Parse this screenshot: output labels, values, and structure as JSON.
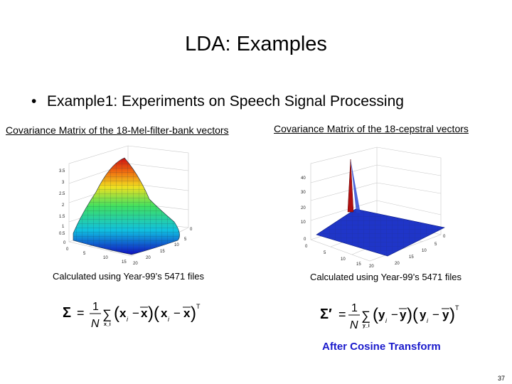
{
  "slide": {
    "title": "LDA: Examples",
    "bullet": "Example1: Experiments on Speech Signal Processing",
    "bullet_marker": "•",
    "page_number": "37"
  },
  "left_panel": {
    "caption": "Covariance Matrix of the 18-Mel-filter-bank vectors",
    "note": "Calculated using Year-99’s 5471 files",
    "formula": {
      "lhs": "Σ",
      "equals": "=",
      "fraction_num": "1",
      "fraction_den": "N",
      "sum": "∑",
      "sum_sub": "x_i",
      "vec": "x",
      "sub": "i",
      "minus": "−",
      "mean": "x",
      "transpose": "T"
    },
    "z_ticks": [
      "3.5",
      "3",
      "2.5",
      "2",
      "1.5",
      "1",
      "0.5",
      "0"
    ],
    "x_ticks": [
      "0",
      "5",
      "10",
      "15",
      "20"
    ],
    "y_ticks": [
      "0",
      "5",
      "10",
      "15",
      "20"
    ]
  },
  "right_panel": {
    "caption": "Covariance Matrix of the 18-cepstral vectors",
    "note": "Calculated using Year-99’s 5471 files",
    "formula": {
      "lhs": "Σ′",
      "equals": "=",
      "fraction_num": "1",
      "fraction_den": "N",
      "sum": "∑",
      "sum_sub": "y_i",
      "vec": "y",
      "sub": "i",
      "minus": "−",
      "mean": "y",
      "transpose": "T"
    },
    "z_ticks": [
      "40",
      "30",
      "20",
      "10",
      "0"
    ],
    "x_ticks": [
      "0",
      "5",
      "10",
      "15",
      "20"
    ],
    "y_ticks": [
      "0",
      "5",
      "10",
      "15",
      "20"
    ],
    "label": "After Cosine Transform",
    "label_color": "#1a1acc"
  }
}
